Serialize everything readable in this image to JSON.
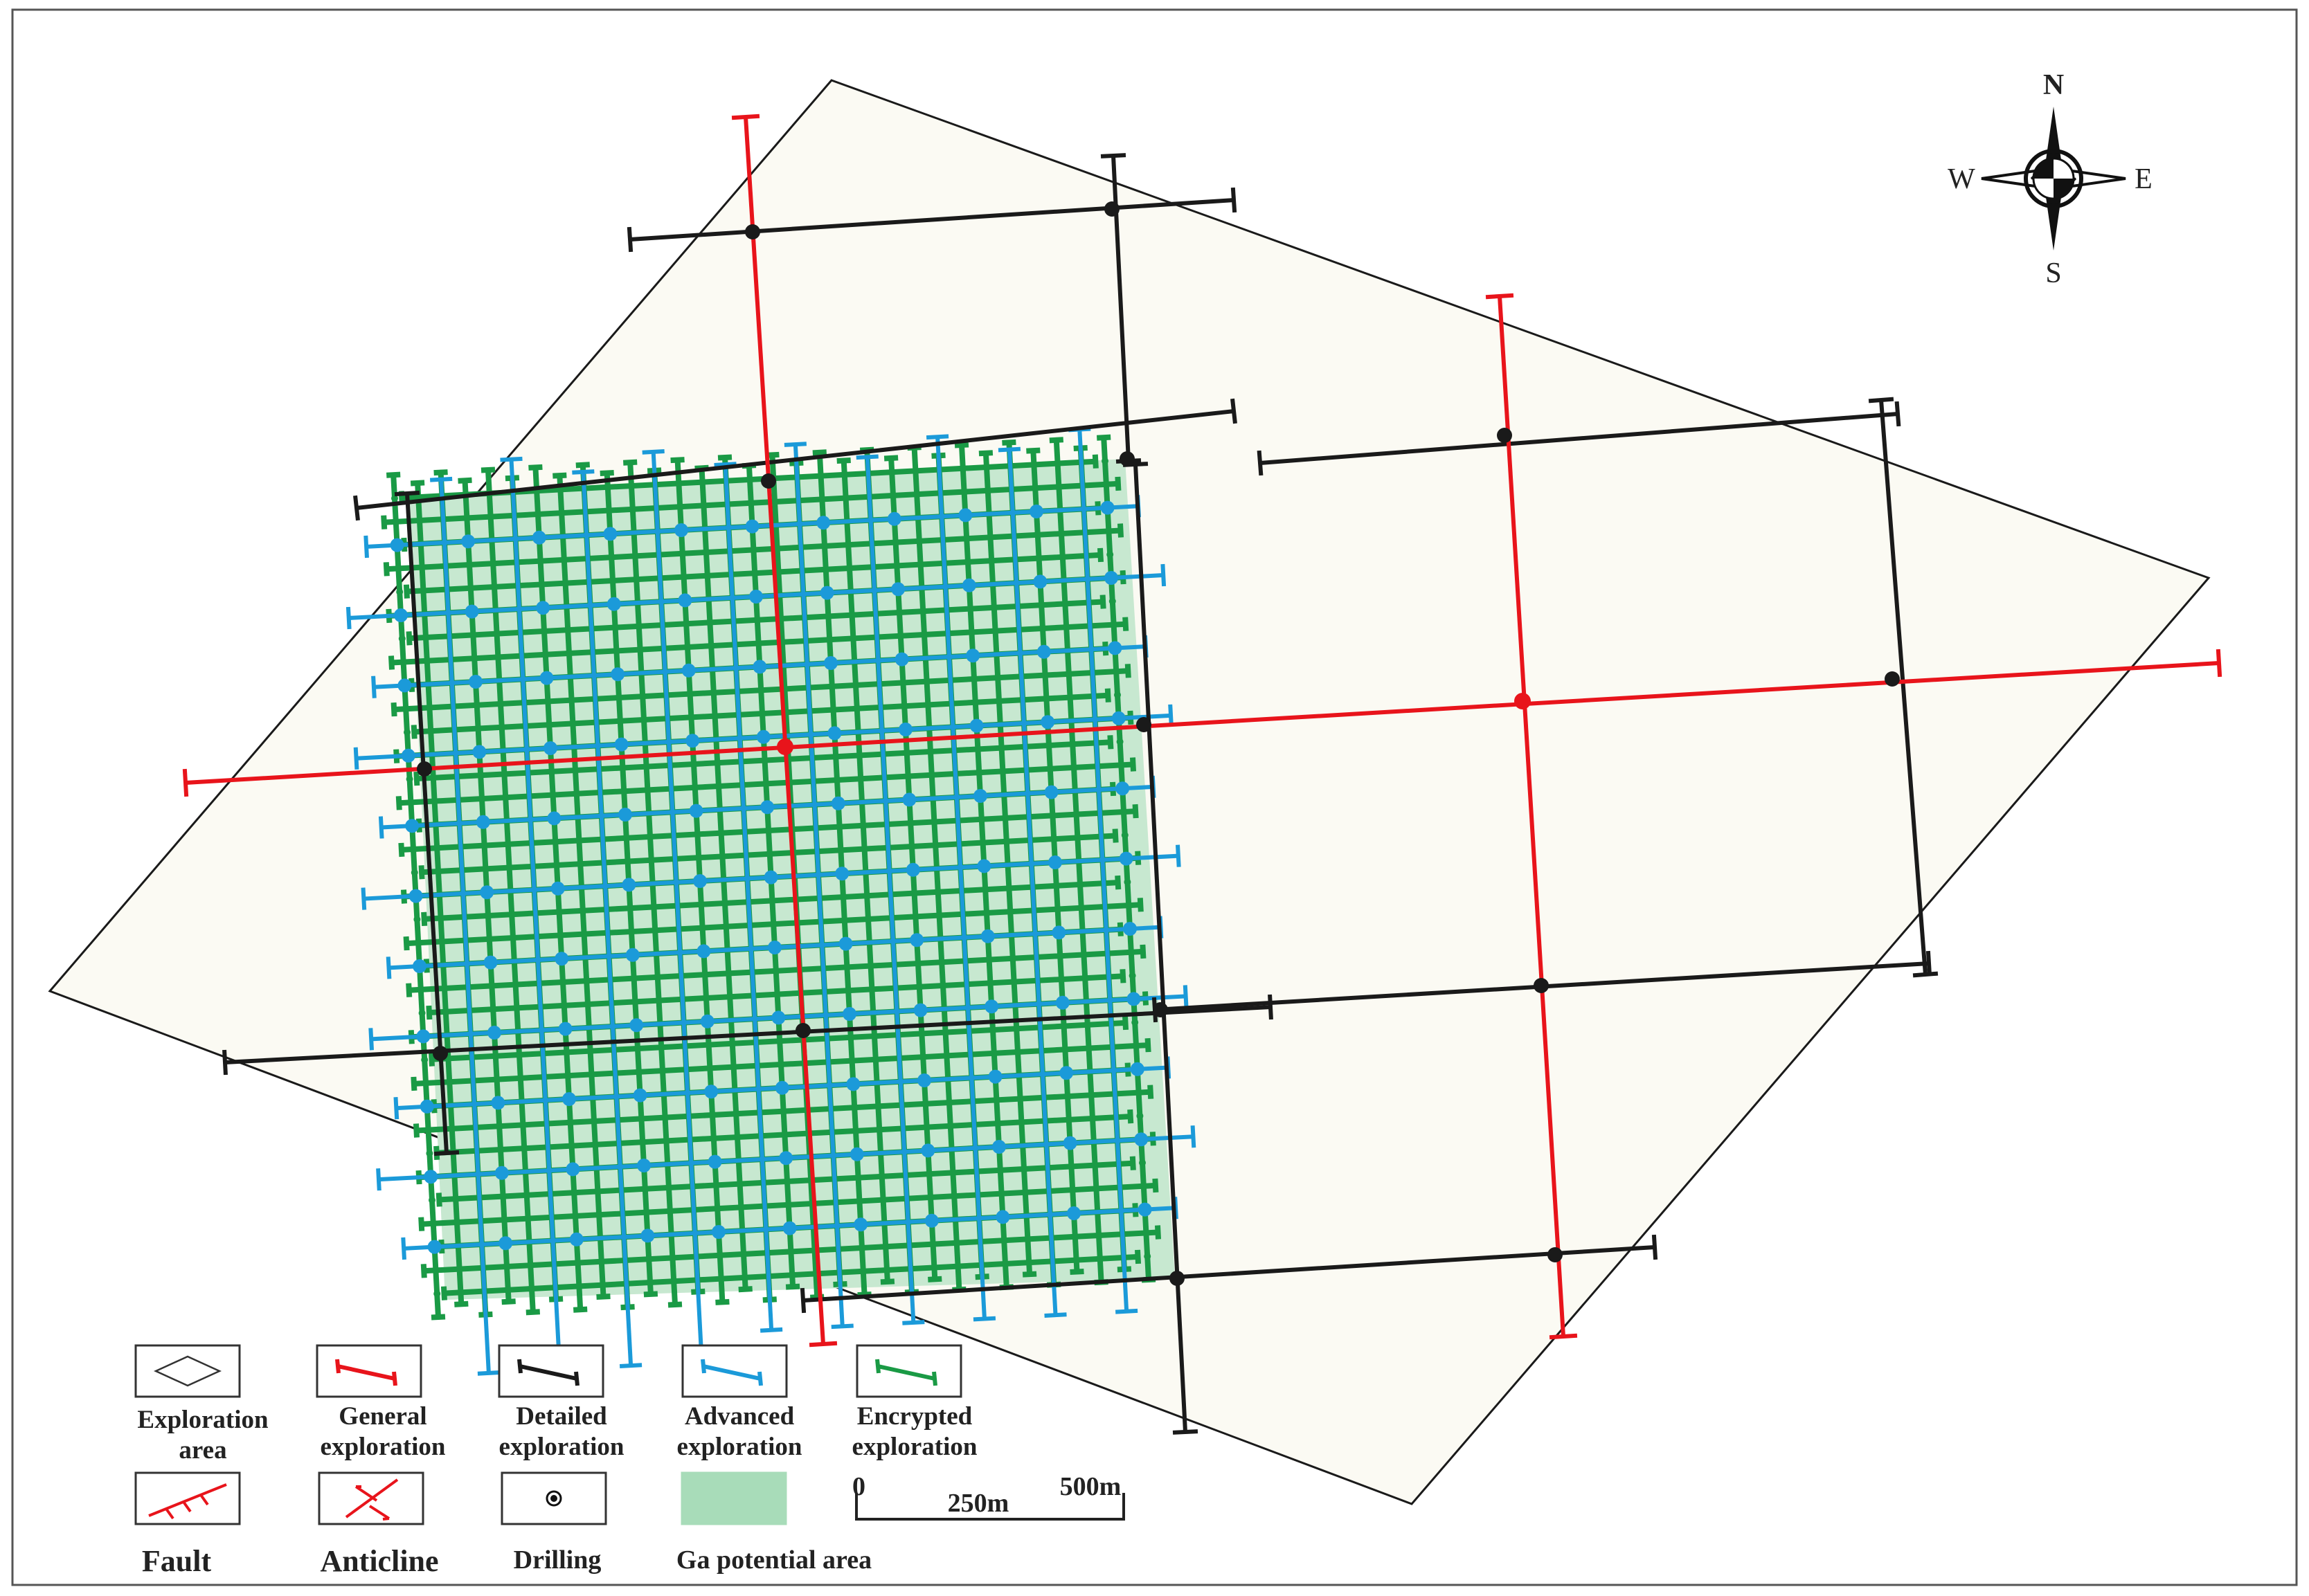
{
  "compass": {
    "n": "N",
    "s": "S",
    "e": "E",
    "w": "W"
  },
  "legend": [
    {
      "key": "exploration_area",
      "lines": [
        "Exploration",
        "area"
      ]
    },
    {
      "key": "general",
      "lines": [
        "General",
        "exploration"
      ]
    },
    {
      "key": "detailed",
      "lines": [
        "Detailed",
        "exploration"
      ]
    },
    {
      "key": "advanced",
      "lines": [
        "Advanced",
        "exploration"
      ]
    },
    {
      "key": "encrypted",
      "lines": [
        "Encrypted",
        "exploration"
      ]
    },
    {
      "key": "fault",
      "lines": [
        "Fault"
      ]
    },
    {
      "key": "anticline",
      "lines": [
        "Anticline"
      ]
    },
    {
      "key": "drilling",
      "lines": [
        "Drilling"
      ]
    },
    {
      "key": "ga_potential",
      "lines": [
        "Ga potential area"
      ]
    }
  ],
  "scale_bar": {
    "labels": [
      "0",
      "250m",
      "500m"
    ]
  },
  "colors": {
    "general": "#e8141b",
    "detailed": "#1a1a1a",
    "advanced": "#1b9ad9",
    "encrypted": "#1a9a45",
    "ga_potential_fill": "#c7e8d0",
    "exploration_area_fill": "#fbfaf3"
  }
}
